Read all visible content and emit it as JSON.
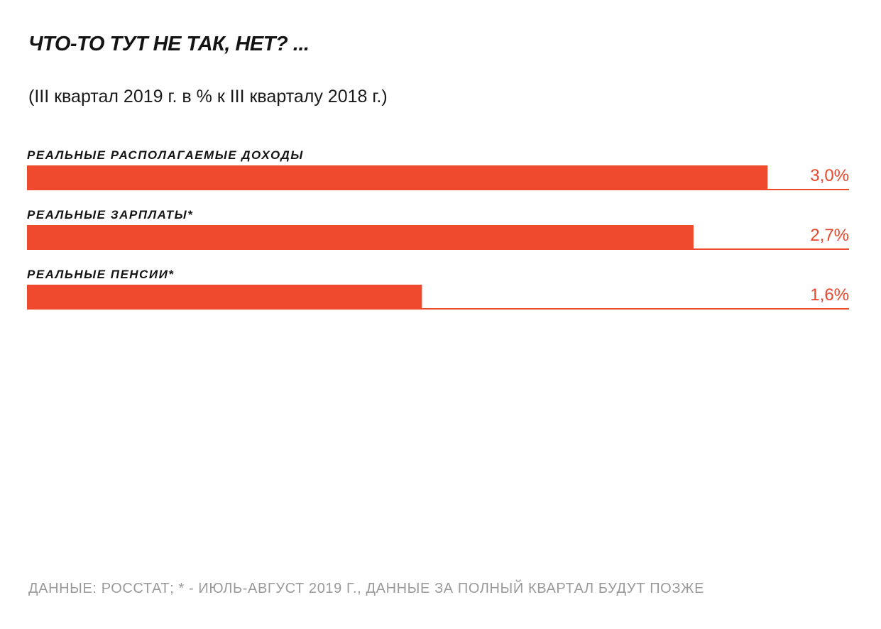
{
  "header": {
    "title": "ЧТО-ТО ТУТ НЕ ТАК, НЕТ? ...",
    "subtitle": "(III квартал 2019 г. в % к III кварталу 2018 г.)"
  },
  "footer": {
    "source": "ДАННЫЕ: РОССТАТ; * - ИЮЛЬ-АВГУСТ 2019 Г., ДАННЫЕ ЗА ПОЛНЫЙ КВАРТАЛ БУДУТ ПОЗЖЕ"
  },
  "chart_data": {
    "type": "bar",
    "orientation": "horizontal",
    "title": "ЧТО-ТО ТУТ НЕ ТАК, НЕТ? ...",
    "subtitle": "(III квартал 2019 г. в % к III кварталу 2018 г.)",
    "categories": [
      "РЕАЛЬНЫЕ РАСПОЛАГАЕМЫЕ ДОХОДЫ",
      "РЕАЛЬНЫЕ ЗАРПЛАТЫ*",
      "РЕАЛЬНЫЕ ПЕНСИИ*"
    ],
    "values": [
      3.0,
      2.7,
      1.6
    ],
    "value_labels": [
      "3,0%",
      "2,7%",
      "1,6%"
    ],
    "xlim": [
      0,
      3.33
    ],
    "grid": false,
    "legend": "none",
    "colors": {
      "bar": "#f04a2e",
      "baseline": "#f04a2e",
      "value_text": "#e8472b"
    }
  }
}
